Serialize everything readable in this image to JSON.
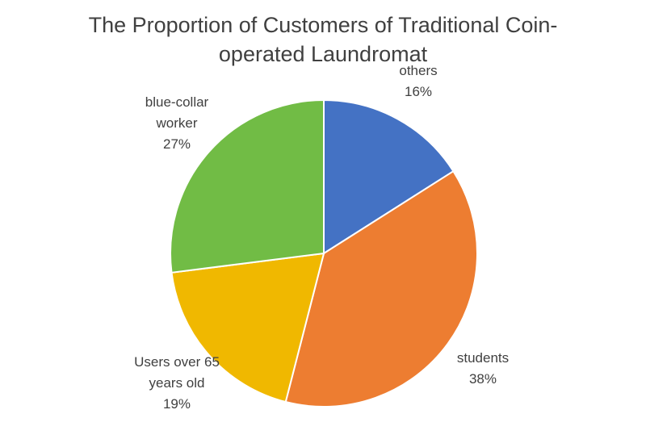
{
  "page": {
    "background": "#ffffff"
  },
  "chart_data": {
    "type": "pie",
    "title": "The Proportion of Customers of Traditional Coin-operated Laundromat",
    "title_lines": [
      "The Proportion of Customers of Traditional Coin-",
      "operated Laundromat"
    ],
    "title_color": "#404040",
    "label_color": "#404040",
    "background": "#ffffff",
    "legend": "none",
    "start_angle_deg": 0,
    "direction": "clockwise",
    "categories": [
      "others",
      "students",
      "Users over 65 years old",
      "blue-collar worker"
    ],
    "values": [
      16,
      38,
      19,
      27
    ],
    "slices": [
      {
        "label": "others",
        "label_lines": [
          "others"
        ],
        "value": 16,
        "pct_label": "16%",
        "color": "#4472C4"
      },
      {
        "label": "students",
        "label_lines": [
          "students"
        ],
        "value": 38,
        "pct_label": "38%",
        "color": "#ED7D31"
      },
      {
        "label": "Users over 65 years old",
        "label_lines": [
          "Users over 65",
          "years old"
        ],
        "value": 19,
        "pct_label": "19%",
        "color": "#F0B800"
      },
      {
        "label": "blue-collar worker",
        "label_lines": [
          "blue-collar",
          "worker"
        ],
        "value": 27,
        "pct_label": "27%",
        "color": "#71BC45"
      }
    ]
  }
}
